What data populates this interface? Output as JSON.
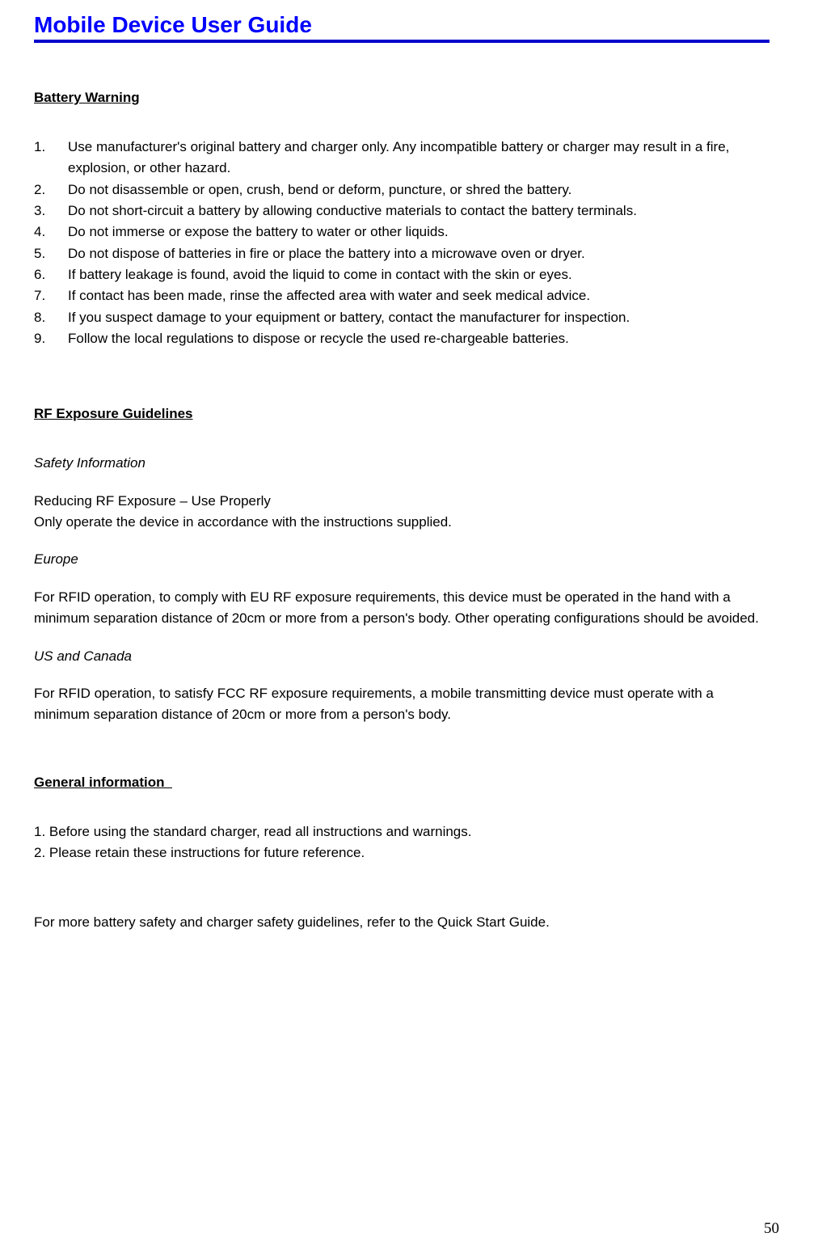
{
  "header": {
    "title": "Mobile Device User Guide",
    "title_color": "#0000ff",
    "rule_color": "#0000cc"
  },
  "sections": {
    "battery": {
      "heading": "Battery Warning",
      "items": [
        "Use manufacturer's original battery and charger only. Any incompatible battery or charger may result in a fire, explosion, or other hazard.",
        "Do not disassemble or open, crush, bend or deform, puncture, or shred the battery.",
        "Do not short-circuit a battery by allowing conductive materials to contact the battery terminals.",
        "Do not immerse or expose the battery to water or other liquids.",
        "Do not dispose of batteries in fire or place the battery into a microwave oven or dryer.",
        "If battery leakage is found, avoid the liquid to come in contact with the skin or eyes.",
        "If contact has been made, rinse the affected area with water and seek medical advice.",
        "If you suspect damage to your equipment or battery, contact the manufacturer for inspection.",
        "Follow the local regulations to dispose or recycle the used re-chargeable batteries."
      ]
    },
    "rf": {
      "heading": "RF Exposure Guidelines",
      "safety_title": "Safety Information",
      "reducing_title": "Reducing RF Exposure – Use Properly",
      "reducing_body": "Only operate the device in accordance with the instructions supplied.",
      "europe_title": "Europe",
      "europe_body": "For RFID operation, to comply with EU RF exposure requirements, this device must be operated in the hand with a minimum separation distance of 20cm or more from a person's body. Other operating configurations should be avoided.",
      "us_title": "US and Canada",
      "us_body": "For RFID operation, to satisfy FCC RF exposure requirements, a mobile transmitting device must operate with a minimum separation distance of 20cm or more from a person's body."
    },
    "general": {
      "heading": "General information",
      "items": [
        "1. Before using the standard charger, read all instructions and warnings.",
        "2. Please retain these instructions for future reference."
      ],
      "footer_note": "For more battery safety and charger safety guidelines, refer to the Quick Start Guide."
    }
  },
  "page_number": "50",
  "style": {
    "body_font_size_pt": 12,
    "title_font_size_pt": 21,
    "background": "#ffffff",
    "text_color": "#000000"
  }
}
